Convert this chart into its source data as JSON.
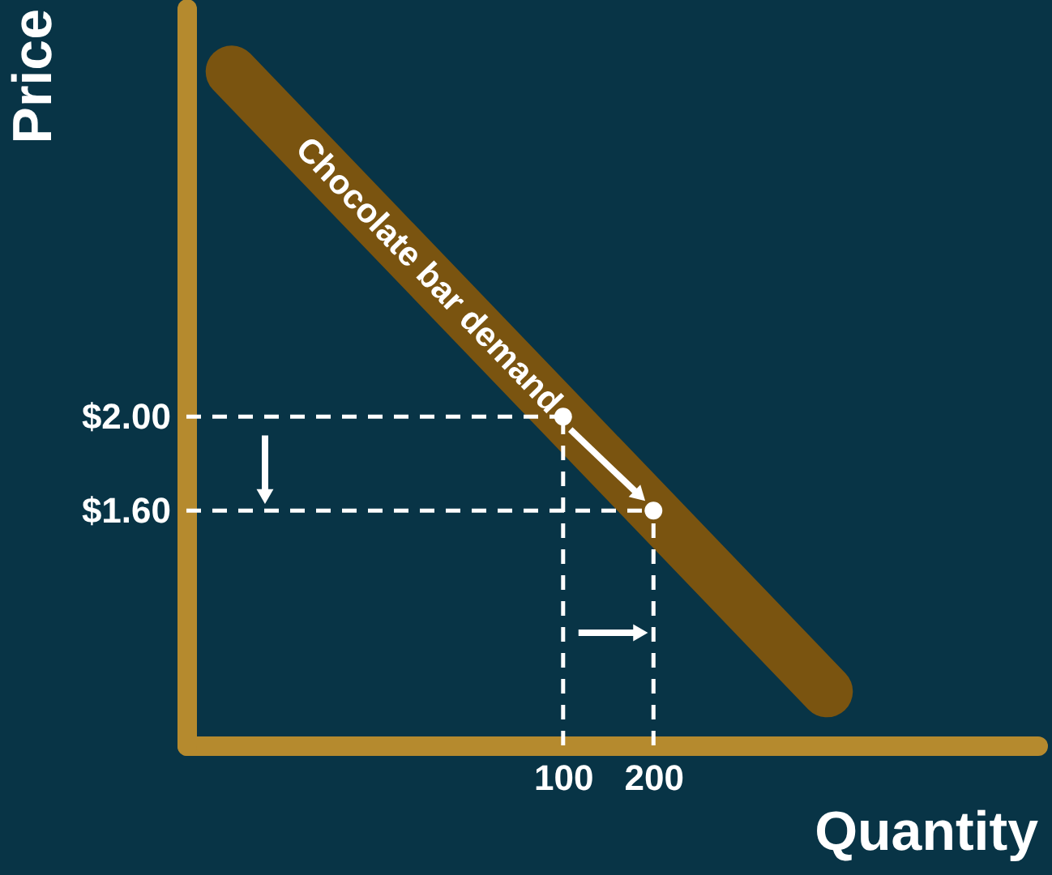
{
  "chart_data": {
    "type": "line",
    "xlabel": "Quantity",
    "ylabel": "Price",
    "xlim": [
      -317,
      625
    ],
    "ylim": [
      0.6,
      3.74
    ],
    "xticks": [
      100,
      200
    ],
    "yticks": [
      {
        "value": 2.0,
        "label": "$2.00"
      },
      {
        "value": 1.6,
        "label": "$1.60"
      }
    ],
    "grid": false,
    "series": [
      {
        "name": "Chocolate bar demand",
        "type": "line",
        "color": "#7a5410",
        "x": [
          -267,
          392
        ],
        "values": [
          3.47,
          0.83
        ]
      },
      {
        "type": "line",
        "color": "#ffffff",
        "line_style": "dashed",
        "x": [
          -317,
          100
        ],
        "values": [
          2.0,
          2.0
        ]
      },
      {
        "type": "line",
        "color": "#ffffff",
        "line_style": "dashed",
        "x": [
          100,
          100
        ],
        "values": [
          0.6,
          2.0
        ]
      },
      {
        "type": "line",
        "color": "#ffffff",
        "line_style": "dashed",
        "x": [
          -317,
          200
        ],
        "values": [
          1.6,
          1.6
        ]
      },
      {
        "type": "line",
        "color": "#ffffff",
        "line_style": "dashed",
        "x": [
          200,
          200
        ],
        "values": [
          0.6,
          1.6
        ]
      },
      {
        "type": "line",
        "color": "#ffffff",
        "marker": "triangle",
        "x": [
          -230,
          -230
        ],
        "values": [
          1.92,
          1.67
        ]
      },
      {
        "type": "line",
        "color": "#ffffff",
        "marker": "triangle",
        "x": [
          117,
          183
        ],
        "values": [
          1.08,
          1.08
        ]
      },
      {
        "type": "line",
        "color": "#ffffff",
        "marker": "triangle",
        "x": [
          108,
          183
        ],
        "values": [
          1.945,
          1.67
        ]
      },
      {
        "type": "scatter",
        "color": "#ffffff",
        "marker": "circle",
        "x": [
          100,
          200
        ],
        "values": [
          2.0,
          1.6
        ]
      }
    ]
  }
}
